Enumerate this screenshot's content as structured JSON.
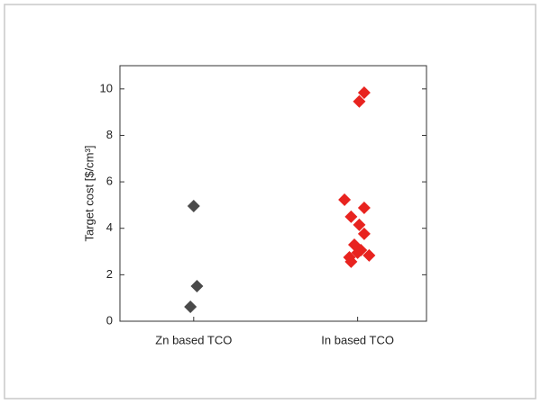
{
  "chart_data": {
    "type": "scatter",
    "y_label": "Target cost [$/cm³]",
    "xlim": [
      0.55,
      2.42
    ],
    "xticks": [
      {
        "value": 1,
        "label": "Zn based TCO"
      },
      {
        "value": 2,
        "label": "In based TCO"
      }
    ],
    "ylim": [
      0,
      11
    ],
    "yticks": [
      0,
      2,
      4,
      6,
      8,
      10
    ],
    "series": [
      {
        "name": "Zn based TCO",
        "color": "#4a4a4a",
        "x": [
          1.0,
          1.02,
          0.98
        ],
        "values": [
          4.96,
          1.51,
          0.62
        ]
      },
      {
        "name": "In based TCO",
        "color": "#e8231f",
        "x": [
          2.04,
          2.01,
          1.92,
          2.04,
          1.96,
          2.01,
          2.04,
          1.98,
          2.02,
          1.95,
          2.07,
          1.96,
          2.0
        ],
        "values": [
          9.84,
          9.46,
          5.23,
          4.88,
          4.5,
          4.15,
          3.76,
          3.29,
          3.06,
          2.75,
          2.83,
          2.56,
          2.95
        ]
      }
    ]
  }
}
